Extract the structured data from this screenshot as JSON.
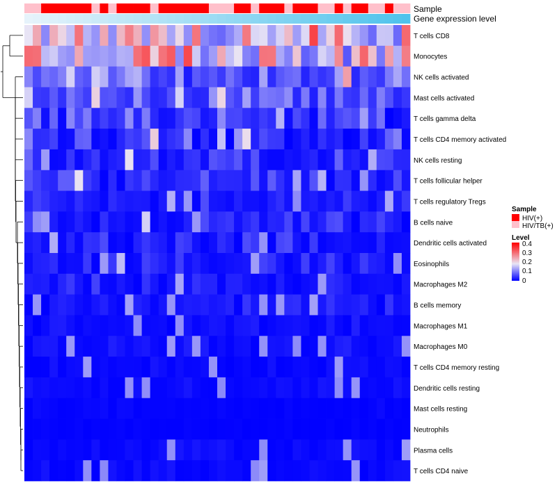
{
  "chart_data": {
    "type": "heatmap",
    "title": "",
    "annotation_tracks": [
      {
        "label": "Sample"
      },
      {
        "label": "Gene expression level"
      }
    ],
    "rows": [
      "T cells CD8",
      "Monocytes",
      "NK cells activated",
      "Mast cells activated",
      "T cells gamma delta",
      "T cells CD4 memory activated",
      "NK cells resting",
      "T cells follicular helper",
      "T cells regulatory  Tregs",
      "B cells naive",
      "Dendritic cells activated",
      "Eosinophils",
      "Macrophages M2",
      "B cells memory",
      "Macrophages M1",
      "Macrophages M0",
      "T cells CD4 memory resting",
      "Dendritic cells resting",
      "Mast cells resting",
      "Neutrophils",
      "Plasma cells",
      "T cells CD4 naive"
    ],
    "n_columns": 46,
    "sample_groups": [
      "HIV/TB(+)",
      "HIV/TB(+)",
      "HIV(+)",
      "HIV(+)",
      "HIV(+)",
      "HIV(+)",
      "HIV(+)",
      "HIV(+)",
      "HIV/TB(+)",
      "HIV(+)",
      "HIV/TB(+)",
      "HIV(+)",
      "HIV(+)",
      "HIV(+)",
      "HIV(+)",
      "HIV/TB(+)",
      "HIV(+)",
      "HIV(+)",
      "HIV(+)",
      "HIV(+)",
      "HIV(+)",
      "HIV(+)",
      "HIV/TB(+)",
      "HIV/TB(+)",
      "HIV/TB(+)",
      "HIV(+)",
      "HIV(+)",
      "HIV/TB(+)",
      "HIV(+)",
      "HIV(+)",
      "HIV(+)",
      "HIV/TB(+)",
      "HIV(+)",
      "HIV(+)",
      "HIV(+)",
      "HIV/TB(+)",
      "HIV/TB(+)",
      "HIV(+)",
      "HIV/TB(+)",
      "HIV(+)",
      "HIV(+)",
      "HIV/TB(+)",
      "HIV/TB(+)",
      "HIV(+)",
      "HIV/TB(+)",
      "HIV/TB(+)"
    ],
    "expression_track": {
      "from_color": "#e6f3fb",
      "to_color": "#4fc3ec"
    },
    "row_profiles": [
      [
        0.18,
        0.36,
        0.16
      ],
      [
        0.15,
        0.38,
        0.13
      ],
      [
        0.04,
        0.16,
        0.05
      ],
      [
        0.04,
        0.15,
        0.05
      ],
      [
        0.0,
        0.13,
        0.07
      ],
      [
        0.0,
        0.12,
        0.06
      ],
      [
        0.0,
        0.1,
        0.05
      ],
      [
        0.0,
        0.09,
        0.04
      ],
      [
        0.0,
        0.07,
        0.04
      ],
      [
        0.0,
        0.07,
        0.04
      ],
      [
        0.0,
        0.07,
        0.03
      ],
      [
        0.0,
        0.06,
        0.03
      ],
      [
        0.0,
        0.06,
        0.03
      ],
      [
        0.0,
        0.05,
        0.025
      ],
      [
        0.0,
        0.03,
        0.02
      ],
      [
        0.0,
        0.03,
        0.02
      ],
      [
        0.0,
        0.02,
        0.015
      ],
      [
        0.0,
        0.02,
        0.015
      ],
      [
        0.0,
        0.01,
        0.01
      ],
      [
        0.0,
        0.005,
        0.005
      ],
      [
        0.0,
        0.02,
        0.02
      ],
      [
        0.0,
        0.02,
        0.015
      ]
    ],
    "color_scale": {
      "min": 0,
      "max": 0.45,
      "stops": [
        {
          "value": 0,
          "color": "#0000ff"
        },
        {
          "value": 0.2,
          "color": "#e9e5f5"
        },
        {
          "value": 0.45,
          "color": "#ff0000"
        }
      ]
    },
    "row_dendrogram": true,
    "legends": [
      {
        "title": "Sample",
        "type": "discrete",
        "entries": [
          {
            "label": "HIV(+)",
            "color": "#ff0000"
          },
          {
            "label": "HIV/TB(+)",
            "color": "#ffc0cb"
          }
        ]
      },
      {
        "title": "Level",
        "type": "continuous",
        "ticks": [
          "0.4",
          "0.3",
          "0.2",
          "0.1",
          "0"
        ]
      }
    ]
  }
}
